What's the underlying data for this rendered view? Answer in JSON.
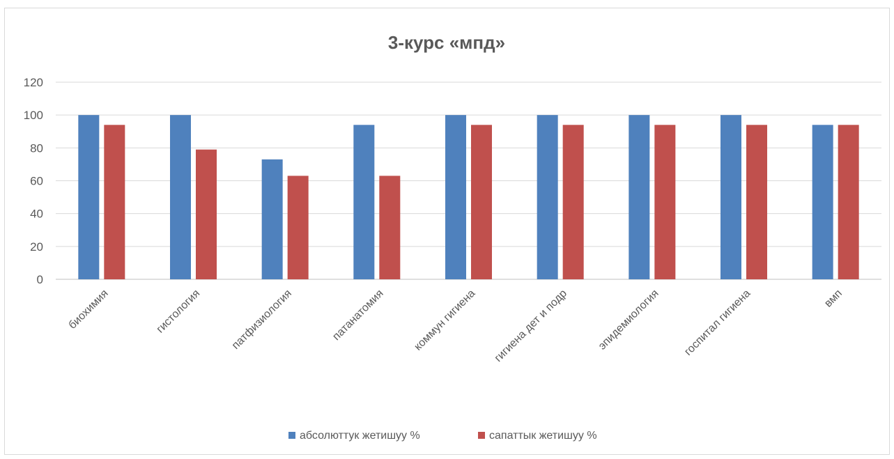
{
  "chart_data": {
    "type": "bar",
    "title": "3-курс «мпд»",
    "xlabel": "",
    "ylabel": "",
    "ylim": [
      0,
      120
    ],
    "yticks": [
      0,
      20,
      40,
      60,
      80,
      100,
      120
    ],
    "grid": true,
    "legend_position": "bottom",
    "categories": [
      "биохимия",
      "гистология",
      "патфизиология",
      "патанатомия",
      "коммун гигиена",
      "гигиена дет и подр",
      "эпидемиология",
      "госпитал гигиена",
      "вмп"
    ],
    "series": [
      {
        "name": "абсолюттук жетишуу %",
        "color": "#4f81bd",
        "values": [
          100,
          100,
          73,
          94,
          100,
          100,
          100,
          100,
          94
        ]
      },
      {
        "name": "сапаттык жетишуу %",
        "color": "#c0504d",
        "values": [
          94,
          79,
          63,
          63,
          94,
          94,
          94,
          94,
          94
        ]
      }
    ]
  }
}
